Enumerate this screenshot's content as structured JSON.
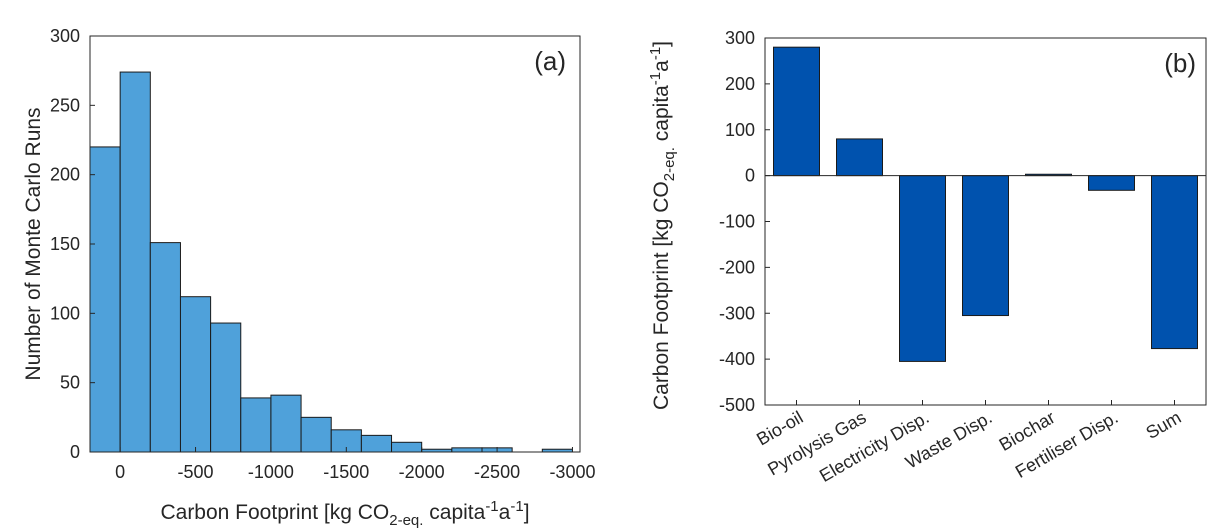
{
  "colors": {
    "hist_fill": "#4FA1DA",
    "bar_fill": "#0052AE",
    "edge": "#1a1a1a",
    "axis": "#262626"
  },
  "chart_data": [
    {
      "type": "bar",
      "panel_label": "(a)",
      "xlabel": "Carbon Footprint [kg CO",
      "xlabel_sub": "2-eq.",
      "xlabel_mid": " capita",
      "xlabel_sup1": "-1",
      "xlabel_a": "a",
      "xlabel_sup2": "-1",
      "xlabel_end": "]",
      "ylabel": "Number of Monte Carlo Runs",
      "x_reversed": true,
      "xlim": [
        200,
        -3050
      ],
      "ylim": [
        0,
        300
      ],
      "xticks": [
        0,
        -500,
        -1000,
        -1500,
        -2000,
        -2500,
        -3000
      ],
      "xtick_labels": [
        "0",
        "-500",
        "-1000",
        "-1500",
        "-2000",
        "-2500",
        "-3000"
      ],
      "yticks": [
        0,
        50,
        100,
        150,
        200,
        250,
        300
      ],
      "ytick_labels": [
        "0",
        "50",
        "100",
        "150",
        "200",
        "250",
        "300"
      ],
      "bin_width": 200,
      "bin_edges": [
        200,
        0,
        -200,
        -400,
        -600,
        -800,
        -1000,
        -1200,
        -1400,
        -1600,
        -1800,
        -2000,
        -2200,
        -2400,
        -2600,
        -2800,
        -3000
      ],
      "counts": [
        220,
        274,
        151,
        112,
        93,
        39,
        41,
        25,
        16,
        12,
        7,
        2,
        3,
        3,
        0,
        2
      ],
      "grid": false
    },
    {
      "type": "bar",
      "panel_label": "(b)",
      "ylabel": "Carbon Footprint [kg CO",
      "ylabel_sub": "2-eq.",
      "ylabel_mid": " capita",
      "ylabel_sup1": "-1",
      "ylabel_a": "a",
      "ylabel_sup2": "-1",
      "ylabel_end": "]",
      "categories": [
        "Bio-oil",
        "Pyrolysis Gas",
        "Electricity Disp.",
        "Waste Disp.",
        "Biochar",
        "Fertiliser Disp.",
        "Sum"
      ],
      "values": [
        280,
        80,
        -405,
        -305,
        3,
        -32,
        -377
      ],
      "ylim": [
        -500,
        300
      ],
      "yticks": [
        300,
        200,
        100,
        0,
        -100,
        -200,
        -300,
        -400,
        -500
      ],
      "ytick_labels": [
        "300",
        "200",
        "100",
        "0",
        "-100",
        "-200",
        "-300",
        "-400",
        "-500"
      ],
      "grid": false
    }
  ]
}
